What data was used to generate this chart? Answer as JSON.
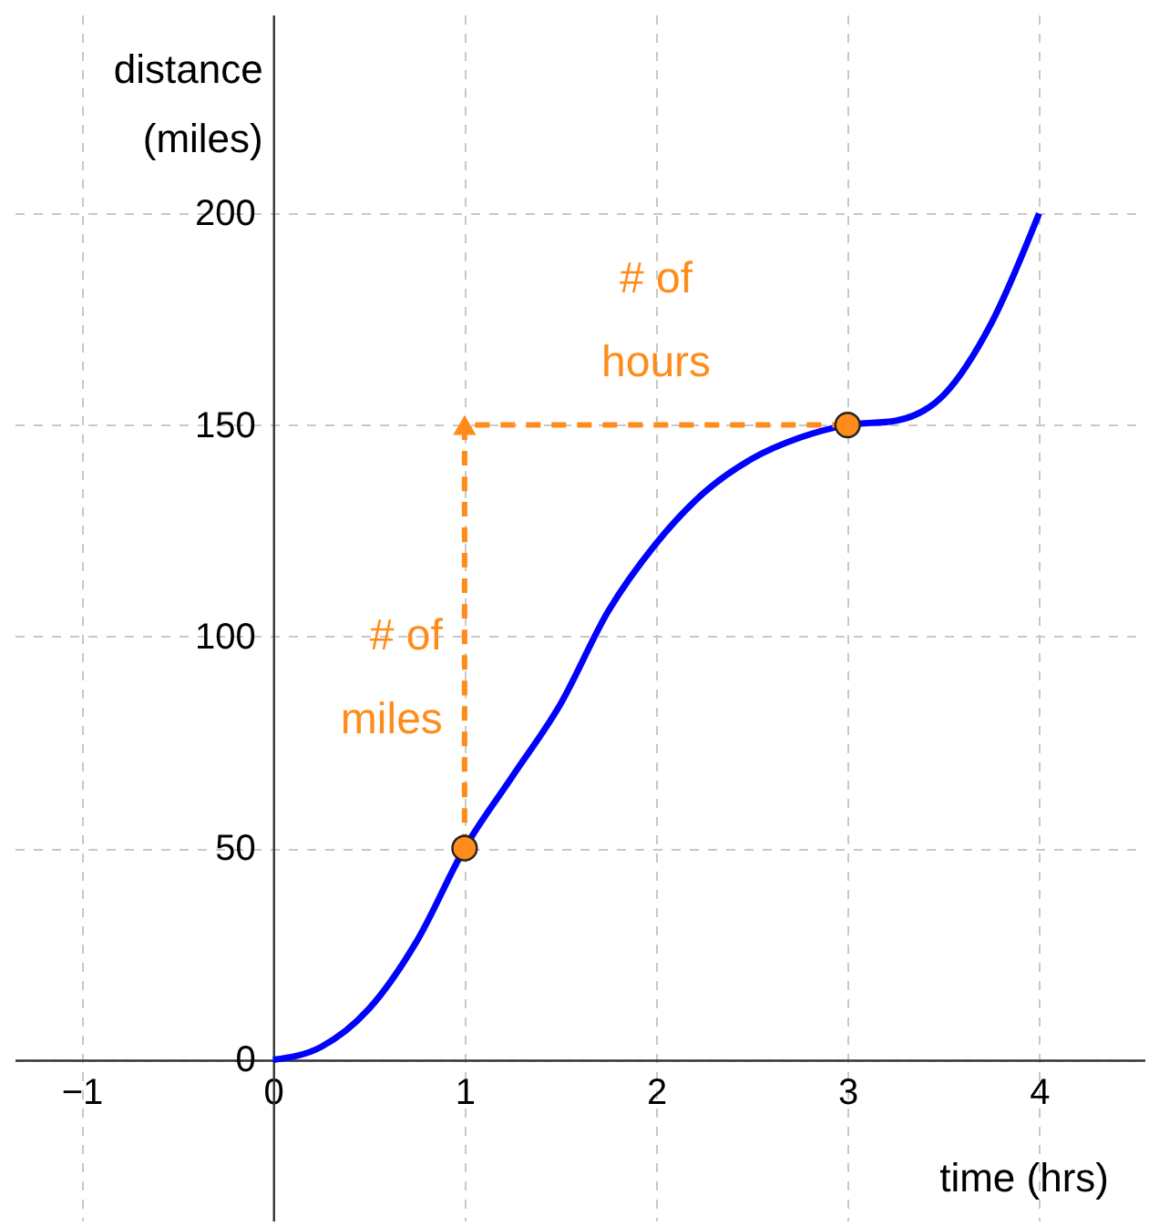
{
  "chart_data": {
    "type": "line",
    "xlabel": "time (hrs)",
    "ylabel": "distance (miles)",
    "xlim": [
      -1.35,
      4.55
    ],
    "ylim": [
      -38,
      247
    ],
    "xticks": [
      -1,
      0,
      1,
      2,
      3,
      4
    ],
    "yticks": [
      0,
      50,
      100,
      150,
      200
    ],
    "grid": true,
    "series": [
      {
        "type": "line",
        "color": "#0000ff",
        "x": [
          0,
          0.25,
          0.5,
          0.75,
          1,
          1.25,
          1.5,
          1.75,
          2,
          2.25,
          2.5,
          2.75,
          3,
          3.25,
          3.5,
          3.75,
          4
        ],
        "values": [
          0,
          3,
          12,
          28,
          50,
          67,
          84,
          106,
          122,
          134,
          142,
          147,
          150,
          151,
          157,
          174,
          200
        ]
      },
      {
        "type": "line",
        "color": "#ff8c1a",
        "line_style": "dashed",
        "x": [
          1,
          1,
          3
        ],
        "values": [
          50,
          150,
          150
        ]
      },
      {
        "type": "scatter",
        "color": "#ff8c1a",
        "marker": "circle",
        "x": [
          1,
          3
        ],
        "values": [
          50,
          150
        ]
      }
    ],
    "annotations": [
      {
        "text": "# of miles",
        "x": 1,
        "y": 100
      },
      {
        "text": "# of hours",
        "x": 2,
        "y": 150
      }
    ]
  }
}
